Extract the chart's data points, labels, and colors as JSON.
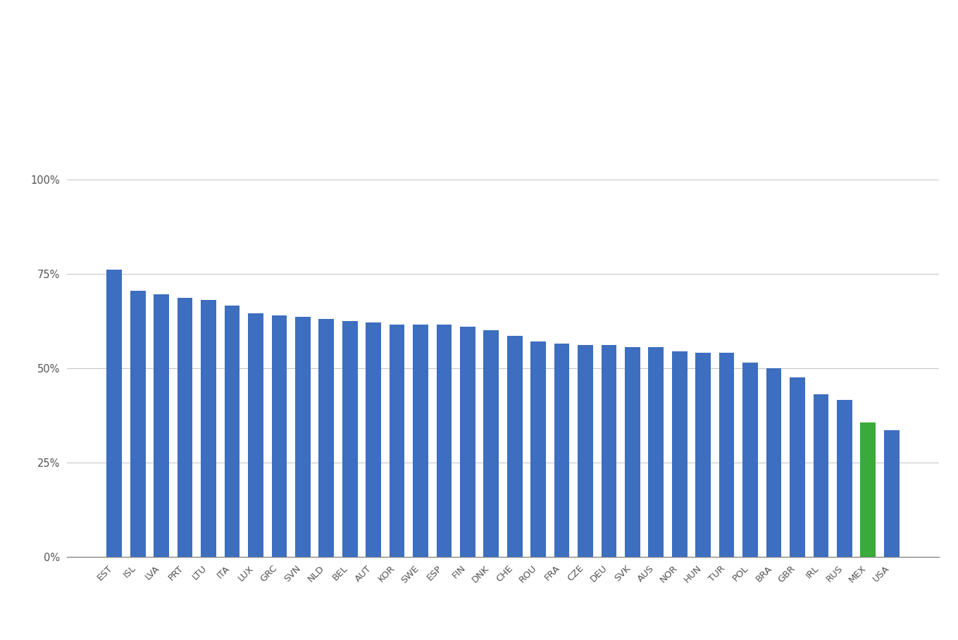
{
  "categories": [
    "EST",
    "ISL",
    "LVA",
    "PRT",
    "LTU",
    "ITA",
    "LUX",
    "GRC",
    "SVN",
    "NLD",
    "BEL",
    "AUT",
    "KOR",
    "SWE",
    "ESP",
    "FIN",
    "DNK",
    "CHE",
    "ROU",
    "FRA",
    "CZE",
    "DEU",
    "SVK",
    "AUS",
    "NOR",
    "HUN",
    "TUR",
    "POL",
    "BRA",
    "GBR",
    "IRL",
    "RUS",
    "MEX",
    "USA"
  ],
  "values": [
    76.0,
    70.5,
    69.5,
    68.5,
    68.0,
    66.5,
    64.5,
    64.0,
    63.5,
    63.0,
    62.5,
    62.0,
    61.5,
    61.5,
    61.5,
    61.0,
    60.0,
    58.5,
    57.0,
    56.5,
    56.0,
    56.0,
    55.5,
    55.5,
    54.5,
    54.0,
    54.0,
    51.5,
    50.0,
    47.5,
    43.0,
    41.5,
    35.5,
    33.5
  ],
  "bar_colors": [
    "#3d6ebf",
    "#3d6ebf",
    "#3d6ebf",
    "#3d6ebf",
    "#3d6ebf",
    "#3d6ebf",
    "#3d6ebf",
    "#3d6ebf",
    "#3d6ebf",
    "#3d6ebf",
    "#3d6ebf",
    "#3d6ebf",
    "#3d6ebf",
    "#3d6ebf",
    "#3d6ebf",
    "#3d6ebf",
    "#3d6ebf",
    "#3d6ebf",
    "#3d6ebf",
    "#3d6ebf",
    "#3d6ebf",
    "#3d6ebf",
    "#3d6ebf",
    "#3d6ebf",
    "#3d6ebf",
    "#3d6ebf",
    "#3d6ebf",
    "#3d6ebf",
    "#3d6ebf",
    "#3d6ebf",
    "#3d6ebf",
    "#3d6ebf",
    "#3aaa3a",
    "#3d6ebf"
  ],
  "ylim": [
    0,
    100
  ],
  "yticks": [
    0,
    25,
    50,
    75,
    100
  ],
  "ytick_labels": [
    "0%",
    "25%",
    "50%",
    "75%",
    "100%"
  ],
  "background_color": "#ffffff",
  "grid_color": "#c8c8c8",
  "bar_width": 0.65
}
